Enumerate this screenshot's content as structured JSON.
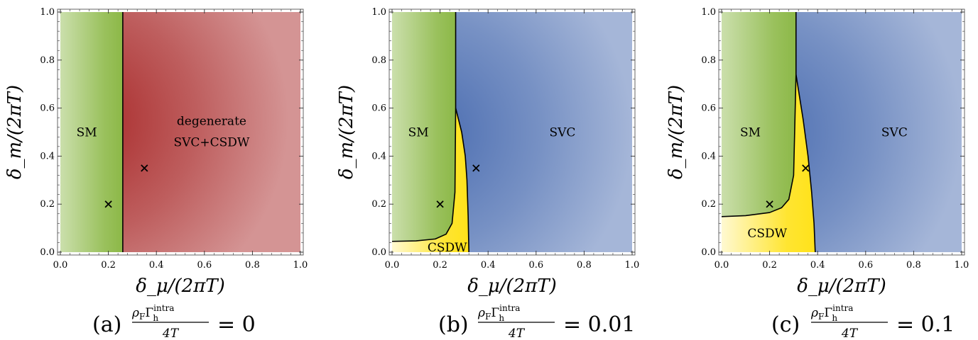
{
  "colors": {
    "SM": "#8cb847",
    "SVC": "#4a6cb0",
    "degenerate": "#a82828",
    "CSDW": "#ffe21a",
    "boundary": "#000000"
  },
  "chart_data": [
    {
      "type": "phase-diagram",
      "panel": "a",
      "xlabel": "δ_μ/(2πT)",
      "ylabel": "δ_m/(2πT)",
      "xlim": [
        0,
        1
      ],
      "ylim": [
        0,
        1
      ],
      "xticks": [
        "0.0",
        "0.2",
        "0.4",
        "0.6",
        "0.8",
        "1.0"
      ],
      "yticks": [
        "0.0",
        "0.2",
        "0.4",
        "0.6",
        "0.8",
        "1.0"
      ],
      "caption": {
        "label": "(a)",
        "lhs_num": "ρ",
        "lhs_sub": "F",
        "gamma": "Γ",
        "gamma_sup": "intra",
        "gamma_sub": "h",
        "den": "4T",
        "eq": "=",
        "value": "0"
      },
      "regions": [
        {
          "name": "SM",
          "label": "SM",
          "label_at": [
            0.11,
            0.5
          ]
        },
        {
          "name": "degenerate",
          "label": "degenerate",
          "label2": "SVC+CSDW",
          "label_at": [
            0.63,
            0.5
          ]
        }
      ],
      "boundaries": [
        {
          "points": [
            [
              0.26,
              0
            ],
            [
              0.26,
              1
            ]
          ]
        }
      ],
      "markers": [
        {
          "x": 0.2,
          "y": 0.2
        },
        {
          "x": 0.35,
          "y": 0.35
        }
      ]
    },
    {
      "type": "phase-diagram",
      "panel": "b",
      "xlabel": "δ_μ/(2πT)",
      "ylabel": "δ_m/(2πT)",
      "xlim": [
        0,
        1
      ],
      "ylim": [
        0,
        1
      ],
      "xticks": [
        "0.0",
        "0.2",
        "0.4",
        "0.6",
        "0.8",
        "1.0"
      ],
      "yticks": [
        "0.0",
        "0.2",
        "0.4",
        "0.6",
        "0.8",
        "1.0"
      ],
      "caption": {
        "label": "(b)",
        "lhs_num": "ρ",
        "lhs_sub": "F",
        "gamma": "Γ",
        "gamma_sup": "intra",
        "gamma_sub": "h",
        "den": "4T",
        "eq": "=",
        "value": "0.01"
      },
      "regions": [
        {
          "name": "SM",
          "label": "SM",
          "label_at": [
            0.11,
            0.5
          ]
        },
        {
          "name": "SVC",
          "label": "SVC",
          "label_at": [
            0.71,
            0.5
          ]
        },
        {
          "name": "CSDW",
          "label": "CSDW",
          "label_at": [
            0.23,
            0.02
          ]
        }
      ],
      "boundaries": [
        {
          "points": [
            [
              0.265,
              1
            ],
            [
              0.265,
              0.6
            ]
          ]
        },
        {
          "points": [
            [
              0,
              0.045
            ],
            [
              0.1,
              0.047
            ],
            [
              0.18,
              0.055
            ],
            [
              0.225,
              0.075
            ],
            [
              0.25,
              0.12
            ],
            [
              0.262,
              0.25
            ],
            [
              0.265,
              0.6
            ]
          ]
        },
        {
          "points": [
            [
              0.265,
              0.6
            ],
            [
              0.29,
              0.5
            ],
            [
              0.305,
              0.4
            ],
            [
              0.312,
              0.3
            ],
            [
              0.317,
              0.15
            ],
            [
              0.32,
              0
            ]
          ]
        }
      ],
      "markers": [
        {
          "x": 0.2,
          "y": 0.2
        },
        {
          "x": 0.35,
          "y": 0.35
        }
      ]
    },
    {
      "type": "phase-diagram",
      "panel": "c",
      "xlabel": "δ_μ/(2πT)",
      "ylabel": "δ_m/(2πT)",
      "xlim": [
        0,
        1
      ],
      "ylim": [
        0,
        1
      ],
      "xticks": [
        "0.0",
        "0.2",
        "0.4",
        "0.6",
        "0.8",
        "1.0"
      ],
      "yticks": [
        "0.0",
        "0.2",
        "0.4",
        "0.6",
        "0.8",
        "1.0"
      ],
      "caption": {
        "label": "(c)",
        "lhs_num": "ρ",
        "lhs_sub": "F",
        "gamma": "Γ",
        "gamma_sup": "intra",
        "gamma_sub": "h",
        "den": "4T",
        "eq": "=",
        "value": "0.1"
      },
      "regions": [
        {
          "name": "SM",
          "label": "SM",
          "label_at": [
            0.12,
            0.5
          ]
        },
        {
          "name": "SVC",
          "label": "SVC",
          "label_at": [
            0.72,
            0.5
          ]
        },
        {
          "name": "CSDW",
          "label": "CSDW",
          "label_at": [
            0.19,
            0.08
          ]
        }
      ],
      "boundaries": [
        {
          "points": [
            [
              0.31,
              1
            ],
            [
              0.31,
              0.74
            ]
          ]
        },
        {
          "points": [
            [
              0,
              0.148
            ],
            [
              0.1,
              0.152
            ],
            [
              0.2,
              0.165
            ],
            [
              0.25,
              0.185
            ],
            [
              0.28,
              0.22
            ],
            [
              0.3,
              0.32
            ],
            [
              0.31,
              0.74
            ]
          ]
        },
        {
          "points": [
            [
              0.31,
              0.74
            ],
            [
              0.34,
              0.55
            ],
            [
              0.36,
              0.4
            ],
            [
              0.375,
              0.25
            ],
            [
              0.385,
              0.12
            ],
            [
              0.39,
              0
            ]
          ]
        }
      ],
      "markers": [
        {
          "x": 0.2,
          "y": 0.2
        },
        {
          "x": 0.35,
          "y": 0.35
        }
      ]
    }
  ]
}
